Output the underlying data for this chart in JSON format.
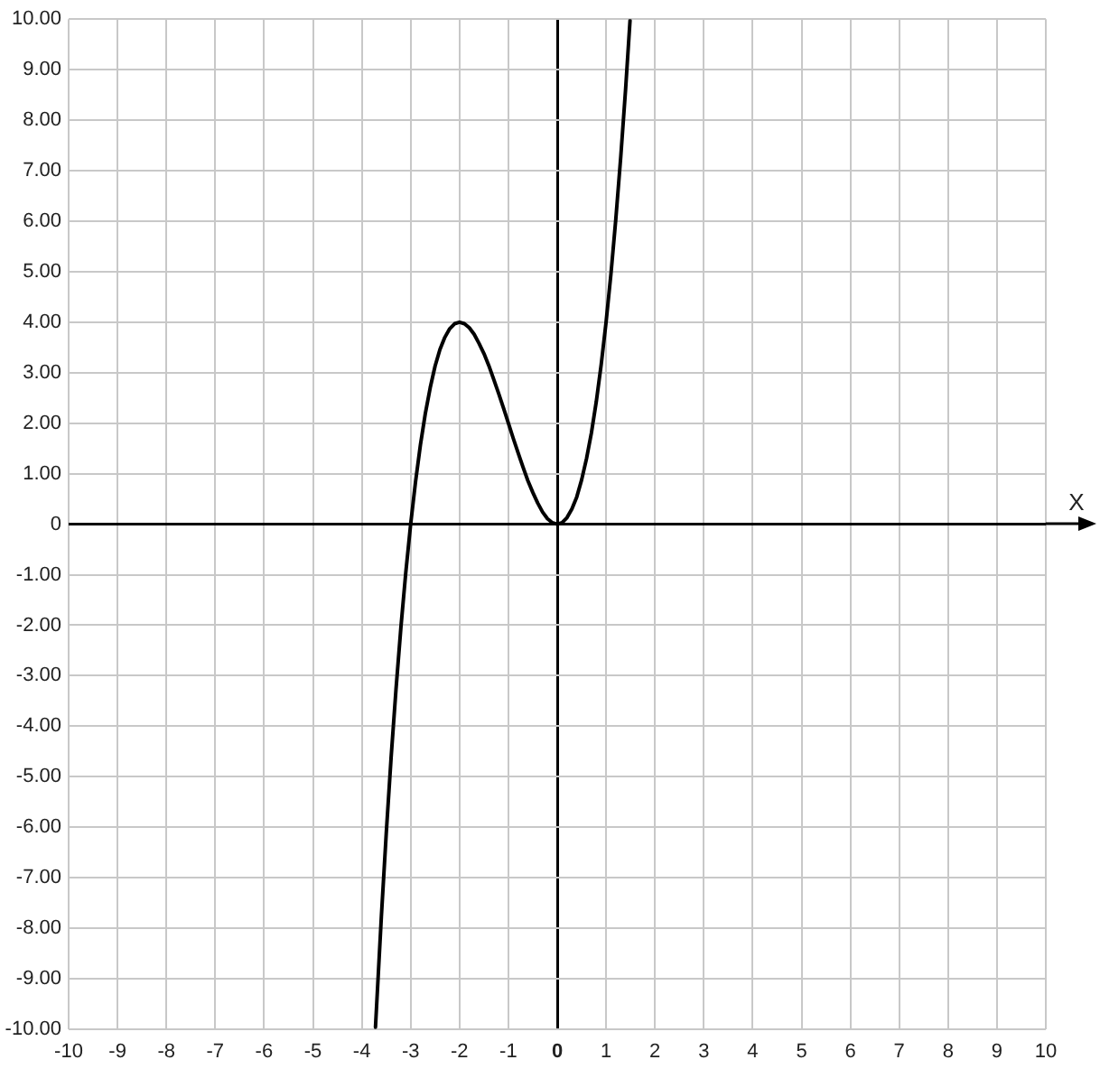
{
  "chart_data": {
    "type": "line",
    "xlabel": "X",
    "x": [
      -3.72,
      -3.6,
      -3.5,
      -3.4,
      -3.3,
      -3.2,
      -3.1,
      -3.0,
      -2.9,
      -2.8,
      -2.7,
      -2.6,
      -2.5,
      -2.4,
      -2.3,
      -2.2,
      -2.1,
      -2.0,
      -1.9,
      -1.8,
      -1.7,
      -1.6,
      -1.5,
      -1.4,
      -1.3,
      -1.2,
      -1.1,
      -1.0,
      -0.9,
      -0.8,
      -0.7,
      -0.6,
      -0.5,
      -0.4,
      -0.3,
      -0.2,
      -0.1,
      0,
      0.1,
      0.2,
      0.3,
      0.4,
      0.5,
      0.6,
      0.7,
      0.8,
      0.9,
      1.0,
      1.1,
      1.2,
      1.3,
      1.4,
      1.49
    ],
    "series": [
      {
        "color": "#000000",
        "values": [
          -9.96,
          -7.78,
          -6.13,
          -4.62,
          -3.27,
          -2.05,
          -0.96,
          0,
          0.84,
          1.57,
          2.19,
          2.7,
          3.13,
          3.46,
          3.7,
          3.87,
          3.97,
          4,
          3.97,
          3.89,
          3.76,
          3.58,
          3.38,
          3.14,
          2.87,
          2.59,
          2.3,
          2,
          1.7,
          1.41,
          1.13,
          0.86,
          0.63,
          0.42,
          0.24,
          0.11,
          0.03,
          0,
          0.03,
          0.13,
          0.3,
          0.54,
          0.88,
          1.3,
          1.81,
          2.43,
          3.16,
          4,
          4.96,
          6.05,
          7.27,
          8.62,
          9.97
        ]
      }
    ],
    "xlim": [
      -10,
      10
    ],
    "ylim": [
      -10,
      10
    ],
    "xticks": [
      -10,
      -9,
      -8,
      -7,
      -6,
      -5,
      -4,
      -3,
      -2,
      -1,
      0,
      1,
      2,
      3,
      4,
      5,
      6,
      7,
      8,
      9,
      10
    ],
    "yticks": [
      {
        "value": -10,
        "label": "-10.00"
      },
      {
        "value": -9,
        "label": "-9.00"
      },
      {
        "value": -8,
        "label": "-8.00"
      },
      {
        "value": -7,
        "label": "-7.00"
      },
      {
        "value": -6,
        "label": "-6.00"
      },
      {
        "value": -5,
        "label": "-5.00"
      },
      {
        "value": -4,
        "label": "-4.00"
      },
      {
        "value": -3,
        "label": "-3.00"
      },
      {
        "value": -2,
        "label": "-2.00"
      },
      {
        "value": -1,
        "label": "-1.00"
      },
      0,
      {
        "value": 1,
        "label": "1.00"
      },
      {
        "value": 2,
        "label": "2.00"
      },
      {
        "value": 3,
        "label": "3.00"
      },
      {
        "value": 4,
        "label": "4.00"
      },
      {
        "value": 5,
        "label": "5.00"
      },
      {
        "value": 6,
        "label": "6.00"
      },
      {
        "value": 7,
        "label": "7.00"
      },
      {
        "value": 8,
        "label": "8.00"
      },
      {
        "value": 9,
        "label": "9.00"
      },
      {
        "value": 10,
        "label": "10.00"
      }
    ],
    "grid": true
  }
}
